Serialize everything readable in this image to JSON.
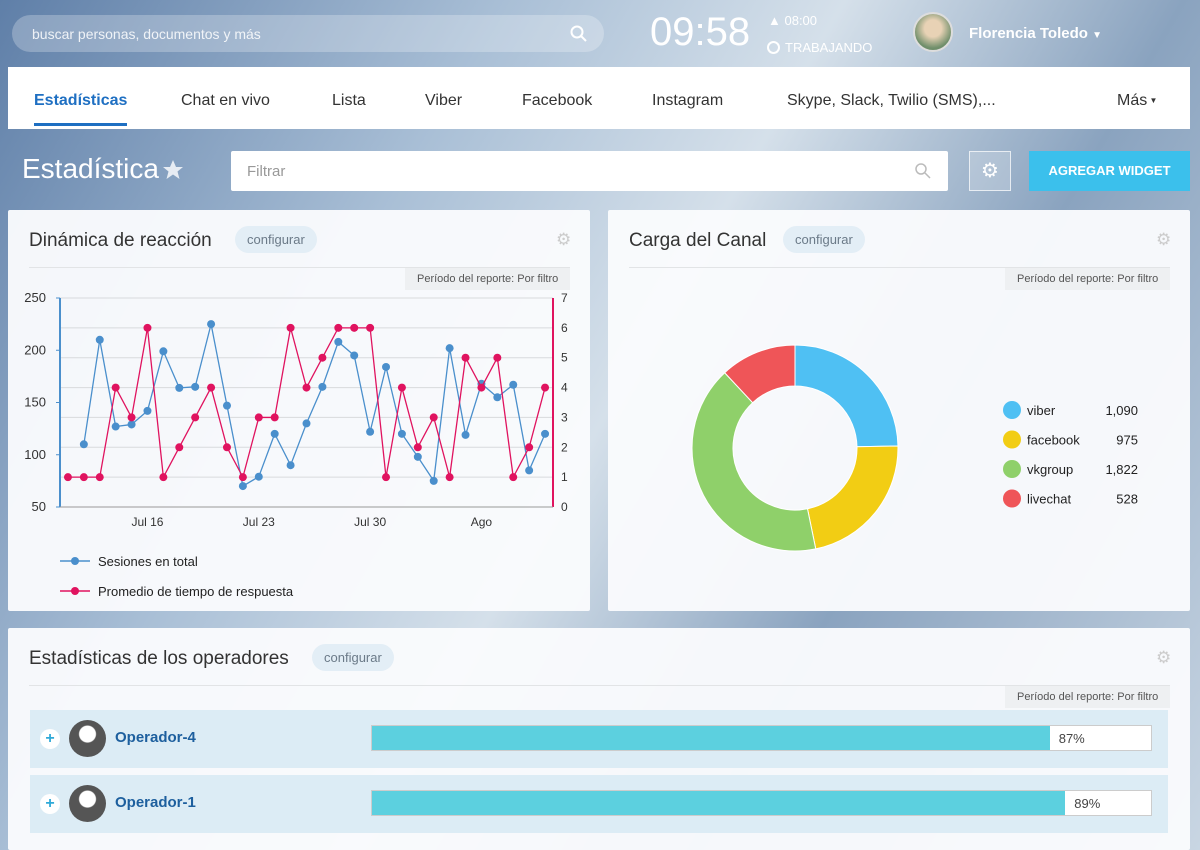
{
  "header": {
    "search_placeholder": "buscar personas, documentos y más",
    "time": "09:58",
    "alarm": "08:00",
    "status": "TRABAJANDO",
    "user": "Florencia Toledo"
  },
  "nav": {
    "tabs": [
      "Estadísticas",
      "Chat en vivo",
      "Lista",
      "Viber",
      "Facebook",
      "Instagram",
      "Skype, Slack, Twilio (SMS),..."
    ],
    "more": "Más"
  },
  "page": {
    "title": "Estadística",
    "filter_placeholder": "Filtrar",
    "add_button": "AGREGAR WIDGET"
  },
  "widget_labels": {
    "configure": "configurar",
    "period": "Período del reporte: Por filtro"
  },
  "chart_data": [
    {
      "type": "line",
      "title": "Dinámica de reacción",
      "categories": [
        null,
        null,
        null,
        null,
        null,
        "Jul 16",
        null,
        null,
        null,
        null,
        null,
        null,
        "Jul 23",
        null,
        null,
        null,
        null,
        null,
        null,
        "Jul 30",
        null,
        null,
        null,
        null,
        null,
        null,
        "Ago",
        null,
        null,
        null,
        null
      ],
      "series": [
        {
          "name": "Sesiones en total",
          "color": "#4a8fcc",
          "values": [
            null,
            110,
            210,
            127,
            129,
            142,
            199,
            164,
            165,
            225,
            147,
            70,
            79,
            120,
            90,
            130,
            165,
            208,
            195,
            122,
            184,
            120,
            98,
            75,
            202,
            119,
            168,
            155,
            167,
            85,
            120
          ]
        },
        {
          "name": "Promedio de tiempo de respuesta",
          "color": "#e0135f",
          "axis": "y2",
          "values": [
            1,
            1,
            1,
            4,
            3,
            6,
            1,
            2,
            3,
            4,
            2,
            1,
            3,
            3,
            6,
            4,
            5,
            6,
            6,
            6,
            1,
            4,
            2,
            3,
            1,
            5,
            4,
            5,
            1,
            2,
            4
          ]
        }
      ],
      "ylim": [
        50,
        250
      ],
      "yticks": [
        50,
        100,
        150,
        200,
        250
      ],
      "y2lim": [
        0,
        7
      ],
      "y2ticks": [
        0,
        1,
        2,
        3,
        4,
        5,
        6,
        7
      ],
      "grid": true,
      "legend": "bottom-left"
    },
    {
      "type": "pie",
      "title": "Carga del Canal",
      "categories": [
        "viber",
        "facebook",
        "vkgroup",
        "livechat"
      ],
      "values": [
        1090,
        975,
        1822,
        528
      ],
      "value_labels": [
        "1,090",
        "975",
        "1,822",
        "528"
      ],
      "colors": [
        "#4fc0f3",
        "#f2cd14",
        "#8fd06a",
        "#ef5558"
      ],
      "legend": "right"
    }
  ],
  "operators": {
    "title": "Estadísticas de los operadores",
    "xlim": [
      0,
      100
    ],
    "rows": [
      {
        "name": "Operador-4",
        "value": 87,
        "value_label": "87%"
      },
      {
        "name": "Operador-1",
        "value": 89,
        "value_label": "89%"
      }
    ]
  }
}
